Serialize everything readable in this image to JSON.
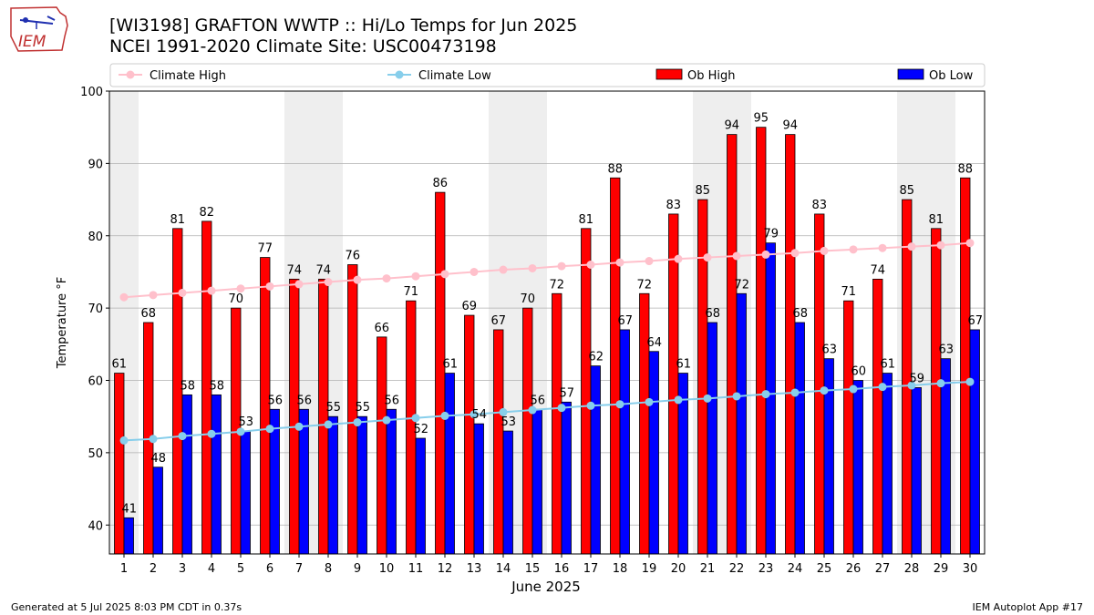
{
  "header": {
    "logo_text": "IEM",
    "title": "[WI3198] GRAFTON WWTP :: Hi/Lo Temps for Jun 2025",
    "subtitle": "NCEI 1991-2020 Climate Site: USC00473198"
  },
  "footer": {
    "generated": "Generated at 5 Jul 2025 8:03 PM CDT in 0.37s",
    "app": "IEM Autoplot App #17"
  },
  "chart_data": {
    "type": "bar",
    "xlabel": "June 2025",
    "ylabel": "Temperature °F",
    "ylim": [
      36,
      100
    ],
    "yticks": [
      40,
      50,
      60,
      70,
      80,
      90,
      100
    ],
    "grid": "horizontal",
    "legend_position": "top",
    "categories": [
      "1",
      "2",
      "3",
      "4",
      "5",
      "6",
      "7",
      "8",
      "9",
      "10",
      "11",
      "12",
      "13",
      "14",
      "15",
      "16",
      "17",
      "18",
      "19",
      "20",
      "21",
      "22",
      "23",
      "24",
      "25",
      "26",
      "27",
      "28",
      "29",
      "30"
    ],
    "weekend_days": [
      1,
      7,
      8,
      14,
      15,
      21,
      22,
      28,
      29
    ],
    "series": [
      {
        "name": "Climate High",
        "kind": "line",
        "color": "#ffc0cb",
        "values": [
          71.5,
          71.8,
          72.1,
          72.4,
          72.7,
          73.0,
          73.3,
          73.6,
          73.9,
          74.1,
          74.4,
          74.7,
          75.0,
          75.3,
          75.5,
          75.8,
          76.0,
          76.3,
          76.5,
          76.8,
          77.0,
          77.2,
          77.4,
          77.6,
          77.9,
          78.1,
          78.3,
          78.5,
          78.7,
          79.0
        ]
      },
      {
        "name": "Climate Low",
        "kind": "line",
        "color": "#87ceeb",
        "values": [
          51.7,
          51.9,
          52.3,
          52.6,
          52.9,
          53.3,
          53.6,
          53.9,
          54.2,
          54.5,
          54.8,
          55.1,
          55.3,
          55.6,
          55.9,
          56.2,
          56.5,
          56.7,
          57.0,
          57.3,
          57.5,
          57.8,
          58.1,
          58.3,
          58.6,
          58.8,
          59.1,
          59.3,
          59.6,
          59.8
        ]
      },
      {
        "name": "Ob High",
        "kind": "bar",
        "color": "#ff0000",
        "values": [
          61,
          68,
          81,
          82,
          70,
          77,
          74,
          74,
          76,
          66,
          71,
          86,
          69,
          67,
          70,
          72,
          81,
          88,
          72,
          83,
          85,
          94,
          95,
          94,
          83,
          71,
          74,
          85,
          81,
          88
        ]
      },
      {
        "name": "Ob Low",
        "kind": "bar",
        "color": "#0000ff",
        "values": [
          41,
          48,
          58,
          58,
          53,
          56,
          56,
          55,
          55,
          56,
          52,
          61,
          54,
          53,
          56,
          57,
          62,
          67,
          64,
          61,
          68,
          72,
          79,
          68,
          63,
          60,
          61,
          59,
          63,
          67
        ]
      }
    ]
  }
}
